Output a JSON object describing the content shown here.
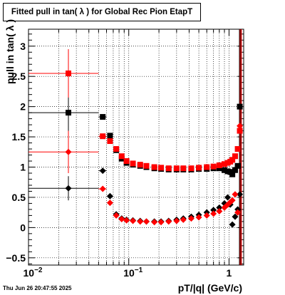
{
  "chart_data": {
    "type": "scatter",
    "title": "Fitted pull in tan( λ ) for Global Rec Pion EtapT",
    "xlabel": "pT/|q| (GeV/c)",
    "ylabel": "pull in tan( λ )",
    "x_scale": "log",
    "xlim": [
      0.01,
      1.4
    ],
    "ylim": [
      -0.62,
      3.28
    ],
    "x_ticks": [
      {
        "v": 0.01,
        "base": "10",
        "exp": "−2"
      },
      {
        "v": 0.1,
        "base": "10",
        "exp": "−1"
      },
      {
        "v": 1,
        "base": "1",
        "exp": ""
      }
    ],
    "y_ticks": [
      -0.5,
      0,
      0.5,
      1,
      1.5,
      2,
      2.5,
      3
    ],
    "y_tick_labels": [
      "−0.5",
      "0",
      "0.5",
      "1",
      "1.5",
      "2",
      "2.5",
      "3"
    ],
    "grid": true,
    "series": [
      {
        "role": "sigma",
        "marker": "square",
        "color": "#000000",
        "points": [
          {
            "x": 0.025,
            "y": 1.9,
            "xlo": 0.01,
            "xhi": 0.05,
            "elo": 0.35,
            "ehi": 0.35
          },
          {
            "x": 0.055,
            "y": 1.83,
            "xlo": 0.05,
            "xhi": 0.06
          },
          {
            "x": 0.065,
            "y": 1.52,
            "xlo": 0.061,
            "xhi": 0.069
          },
          {
            "x": 0.075,
            "y": 1.28
          },
          {
            "x": 0.085,
            "y": 1.14
          },
          {
            "x": 0.095,
            "y": 1.07
          },
          {
            "x": 0.11,
            "y": 1.04
          },
          {
            "x": 0.13,
            "y": 1.02
          },
          {
            "x": 0.15,
            "y": 1.0
          },
          {
            "x": 0.18,
            "y": 0.98
          },
          {
            "x": 0.21,
            "y": 0.97
          },
          {
            "x": 0.25,
            "y": 0.96
          },
          {
            "x": 0.3,
            "y": 0.96
          },
          {
            "x": 0.35,
            "y": 0.96
          },
          {
            "x": 0.42,
            "y": 0.96
          },
          {
            "x": 0.5,
            "y": 0.97
          },
          {
            "x": 0.6,
            "y": 0.97
          },
          {
            "x": 0.7,
            "y": 0.98
          },
          {
            "x": 0.8,
            "y": 0.98
          },
          {
            "x": 0.9,
            "y": 0.95
          },
          {
            "x": 0.97,
            "y": 0.93
          },
          {
            "x": 1.03,
            "y": 0.92
          },
          {
            "x": 1.08,
            "y": 0.88
          },
          {
            "x": 1.15,
            "y": 0.95
          },
          {
            "x": 1.22,
            "y": 1.02
          },
          {
            "x": 1.28,
            "y": 2.0
          }
        ]
      },
      {
        "role": "sigma",
        "marker": "square",
        "color": "#ff0000",
        "points": [
          {
            "x": 0.025,
            "y": 2.55,
            "xlo": 0.01,
            "xhi": 0.05,
            "elo": 0.4,
            "ehi": 0.4
          },
          {
            "x": 0.055,
            "y": 1.51,
            "xlo": 0.05,
            "xhi": 0.06
          },
          {
            "x": 0.065,
            "y": 1.43,
            "xlo": 0.061,
            "xhi": 0.069
          },
          {
            "x": 0.075,
            "y": 1.3
          },
          {
            "x": 0.085,
            "y": 1.18
          },
          {
            "x": 0.095,
            "y": 1.1
          },
          {
            "x": 0.11,
            "y": 1.06
          },
          {
            "x": 0.13,
            "y": 1.04
          },
          {
            "x": 0.15,
            "y": 1.02
          },
          {
            "x": 0.18,
            "y": 1.0
          },
          {
            "x": 0.21,
            "y": 0.99
          },
          {
            "x": 0.25,
            "y": 0.98
          },
          {
            "x": 0.3,
            "y": 0.98
          },
          {
            "x": 0.35,
            "y": 0.98
          },
          {
            "x": 0.42,
            "y": 0.98
          },
          {
            "x": 0.5,
            "y": 0.99
          },
          {
            "x": 0.6,
            "y": 1.0
          },
          {
            "x": 0.7,
            "y": 1.01
          },
          {
            "x": 0.8,
            "y": 1.03
          },
          {
            "x": 0.9,
            "y": 1.05
          },
          {
            "x": 0.97,
            "y": 1.07
          },
          {
            "x": 1.03,
            "y": 1.09
          },
          {
            "x": 1.08,
            "y": 1.12
          },
          {
            "x": 1.15,
            "y": 1.18
          },
          {
            "x": 1.22,
            "y": 1.3
          },
          {
            "x": 1.28,
            "y": 1.6
          }
        ]
      },
      {
        "role": "mean",
        "marker": "diamond",
        "color": "#000000",
        "points": [
          {
            "x": 0.025,
            "y": 0.65,
            "xlo": 0.01,
            "xhi": 0.05,
            "elo": 0.2,
            "ehi": 0.2
          },
          {
            "x": 0.055,
            "y": 0.94,
            "xlo": 0.05,
            "xhi": 0.06
          },
          {
            "x": 0.065,
            "y": 0.52,
            "xlo": 0.061,
            "xhi": 0.069
          },
          {
            "x": 0.075,
            "y": 0.22
          },
          {
            "x": 0.085,
            "y": 0.15
          },
          {
            "x": 0.095,
            "y": 0.13
          },
          {
            "x": 0.11,
            "y": 0.12
          },
          {
            "x": 0.13,
            "y": 0.11
          },
          {
            "x": 0.15,
            "y": 0.1
          },
          {
            "x": 0.18,
            "y": 0.1
          },
          {
            "x": 0.21,
            "y": 0.1
          },
          {
            "x": 0.25,
            "y": 0.11
          },
          {
            "x": 0.3,
            "y": 0.13
          },
          {
            "x": 0.35,
            "y": 0.15
          },
          {
            "x": 0.42,
            "y": 0.18
          },
          {
            "x": 0.5,
            "y": 0.21
          },
          {
            "x": 0.6,
            "y": 0.25
          },
          {
            "x": 0.7,
            "y": 0.29
          },
          {
            "x": 0.8,
            "y": 0.33
          },
          {
            "x": 0.9,
            "y": 0.4
          },
          {
            "x": 0.97,
            "y": 0.5
          },
          {
            "x": 1.03,
            "y": 0.38
          },
          {
            "x": 1.08,
            "y": 0.05
          },
          {
            "x": 1.15,
            "y": 0.18
          },
          {
            "x": 1.22,
            "y": 0.3
          },
          {
            "x": 1.28,
            "y": 0.55
          }
        ]
      },
      {
        "role": "mean",
        "marker": "diamond",
        "color": "#ff0000",
        "points": [
          {
            "x": 0.025,
            "y": 1.25,
            "xlo": 0.01,
            "xhi": 0.05,
            "elo": 0.35,
            "ehi": 0.35
          },
          {
            "x": 0.055,
            "y": 0.64,
            "xlo": 0.05,
            "xhi": 0.06
          },
          {
            "x": 0.065,
            "y": 0.41,
            "xlo": 0.061,
            "xhi": 0.069
          },
          {
            "x": 0.075,
            "y": 0.2
          },
          {
            "x": 0.085,
            "y": 0.14
          },
          {
            "x": 0.095,
            "y": 0.12
          },
          {
            "x": 0.11,
            "y": 0.11
          },
          {
            "x": 0.13,
            "y": 0.1
          },
          {
            "x": 0.15,
            "y": 0.1
          },
          {
            "x": 0.18,
            "y": 0.09
          },
          {
            "x": 0.21,
            "y": 0.09
          },
          {
            "x": 0.25,
            "y": 0.1
          },
          {
            "x": 0.3,
            "y": 0.11
          },
          {
            "x": 0.35,
            "y": 0.13
          },
          {
            "x": 0.42,
            "y": 0.15
          },
          {
            "x": 0.5,
            "y": 0.17
          },
          {
            "x": 0.6,
            "y": 0.2
          },
          {
            "x": 0.7,
            "y": 0.23
          },
          {
            "x": 0.8,
            "y": 0.27
          },
          {
            "x": 0.9,
            "y": 0.33
          },
          {
            "x": 0.97,
            "y": 0.38
          },
          {
            "x": 1.03,
            "y": 0.42
          },
          {
            "x": 1.08,
            "y": 0.45
          },
          {
            "x": 1.15,
            "y": 0.55
          },
          {
            "x": 1.22,
            "y": 0.25
          },
          {
            "x": 1.28,
            "y": 1.68
          }
        ]
      }
    ]
  },
  "datestamp": "Thu Jun 26 20:47:55 2025"
}
